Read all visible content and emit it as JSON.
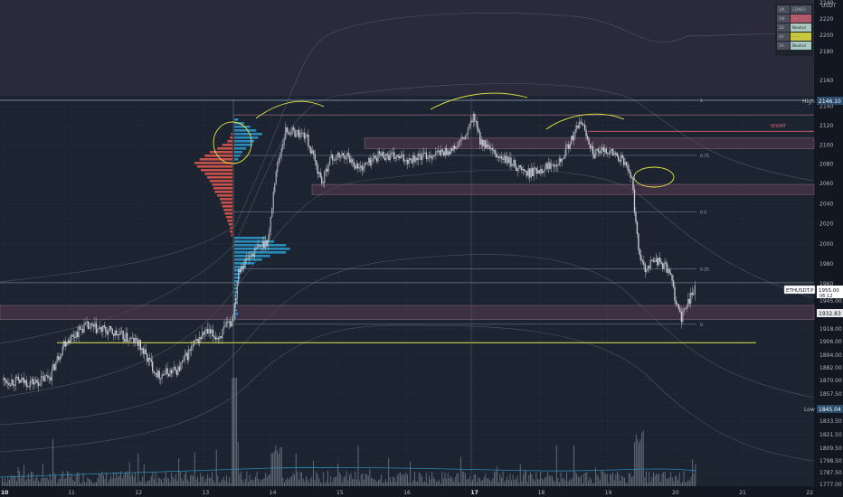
{
  "app": {
    "currency": "USDT",
    "symbol_tag": "ETHUSDT.P",
    "last_price": "1955.00",
    "countdown": "06:12",
    "level_tag": "1932.83",
    "high_label": "High",
    "high_value": "2146.10",
    "low_label": "Low",
    "low_value": "1845.04",
    "short_label": "SHORT"
  },
  "fib_labels": [
    "1",
    "0.75",
    "0.5",
    "0.25",
    "0"
  ],
  "timeframe_table": [
    {
      "tf": "1M",
      "status": "CONSO",
      "color": "#787b86"
    },
    {
      "tf": "1W",
      "status": "- -",
      "color": "#b05a6a"
    },
    {
      "tf": "1D",
      "status": "Neutral",
      "color": "#a8c8c0"
    },
    {
      "tf": "4H",
      "status": "- - -",
      "color": "#c8c840"
    },
    {
      "tf": "1H",
      "status": "Neutral",
      "color": "#a8c8c0"
    }
  ],
  "colors": {
    "background_upper": "#2a2a3a",
    "background_lower": "#1b2430",
    "zone_fill": "#5a3a52",
    "zone_border": "#d88aa8",
    "volume_profile_red": "#c8504a",
    "volume_profile_blue": "#2a8ab8",
    "yellow_line": "#e8e840",
    "candles": "#d0d4dc"
  },
  "chart_data": {
    "type": "candlestick",
    "x_ticks": [
      "10",
      "11",
      "12",
      "13",
      "14",
      "15",
      "16",
      "17",
      "18",
      "19",
      "20",
      "21",
      "22"
    ],
    "y_ticks": [
      2240,
      2220,
      2200,
      2180,
      2160,
      2140,
      2120,
      2100,
      2080,
      2060,
      2040,
      2020,
      2000,
      1980,
      1960,
      1945.0,
      1932.0,
      1918.0,
      1906.0,
      1894.0,
      1882.0,
      1870.0,
      1857.5,
      1845.0,
      1833.5,
      1821.5,
      1809.5,
      1798.5,
      1787.5,
      1777.0
    ],
    "price_path": [
      [
        10.0,
        1870
      ],
      [
        10.5,
        1868
      ],
      [
        10.7,
        1875
      ],
      [
        10.9,
        1905
      ],
      [
        11.2,
        1920
      ],
      [
        11.6,
        1915
      ],
      [
        12.0,
        1905
      ],
      [
        12.2,
        1885
      ],
      [
        12.3,
        1875
      ],
      [
        12.6,
        1880
      ],
      [
        12.8,
        1900
      ],
      [
        13.0,
        1915
      ],
      [
        13.2,
        1910
      ],
      [
        13.4,
        1925
      ],
      [
        13.45,
        1945
      ],
      [
        13.5,
        1975
      ],
      [
        13.7,
        1990
      ],
      [
        13.95,
        2005
      ],
      [
        14.05,
        2070
      ],
      [
        14.2,
        2115
      ],
      [
        14.5,
        2110
      ],
      [
        14.75,
        2060
      ],
      [
        14.85,
        2085
      ],
      [
        15.1,
        2090
      ],
      [
        15.3,
        2075
      ],
      [
        15.6,
        2090
      ],
      [
        16.0,
        2085
      ],
      [
        16.4,
        2090
      ],
      [
        16.7,
        2095
      ],
      [
        16.9,
        2110
      ],
      [
        17.0,
        2130
      ],
      [
        17.1,
        2105
      ],
      [
        17.3,
        2090
      ],
      [
        17.6,
        2080
      ],
      [
        17.8,
        2070
      ],
      [
        18.0,
        2075
      ],
      [
        18.3,
        2085
      ],
      [
        18.5,
        2110
      ],
      [
        18.6,
        2125
      ],
      [
        18.8,
        2090
      ],
      [
        19.0,
        2095
      ],
      [
        19.2,
        2085
      ],
      [
        19.35,
        2070
      ],
      [
        19.45,
        2000
      ],
      [
        19.55,
        1975
      ],
      [
        19.7,
        1985
      ],
      [
        19.9,
        1975
      ],
      [
        20.0,
        1950
      ],
      [
        20.1,
        1925
      ],
      [
        20.2,
        1945
      ],
      [
        20.3,
        1955
      ]
    ],
    "volume_profile_sell": [
      1,
      2,
      4,
      8,
      12,
      18,
      22,
      26,
      30,
      28,
      25,
      22,
      20,
      18,
      16,
      15,
      14,
      12,
      10,
      9,
      8,
      7,
      6,
      5,
      4,
      3,
      2,
      2,
      1
    ],
    "volume_profile_buy": [
      2,
      5,
      8,
      11,
      14,
      12,
      10,
      9,
      6,
      4,
      3,
      2,
      16,
      20,
      26,
      28,
      26,
      18,
      14,
      10,
      6,
      4,
      3,
      3,
      2
    ],
    "levels": [
      2146.1,
      2130,
      2115,
      2105,
      2095,
      2060,
      2050,
      2032,
      1975,
      1960,
      1945,
      1932,
      1922,
      1906
    ],
    "ylim": [
      1777,
      2245
    ],
    "xlim": [
      10,
      22.7
    ]
  }
}
